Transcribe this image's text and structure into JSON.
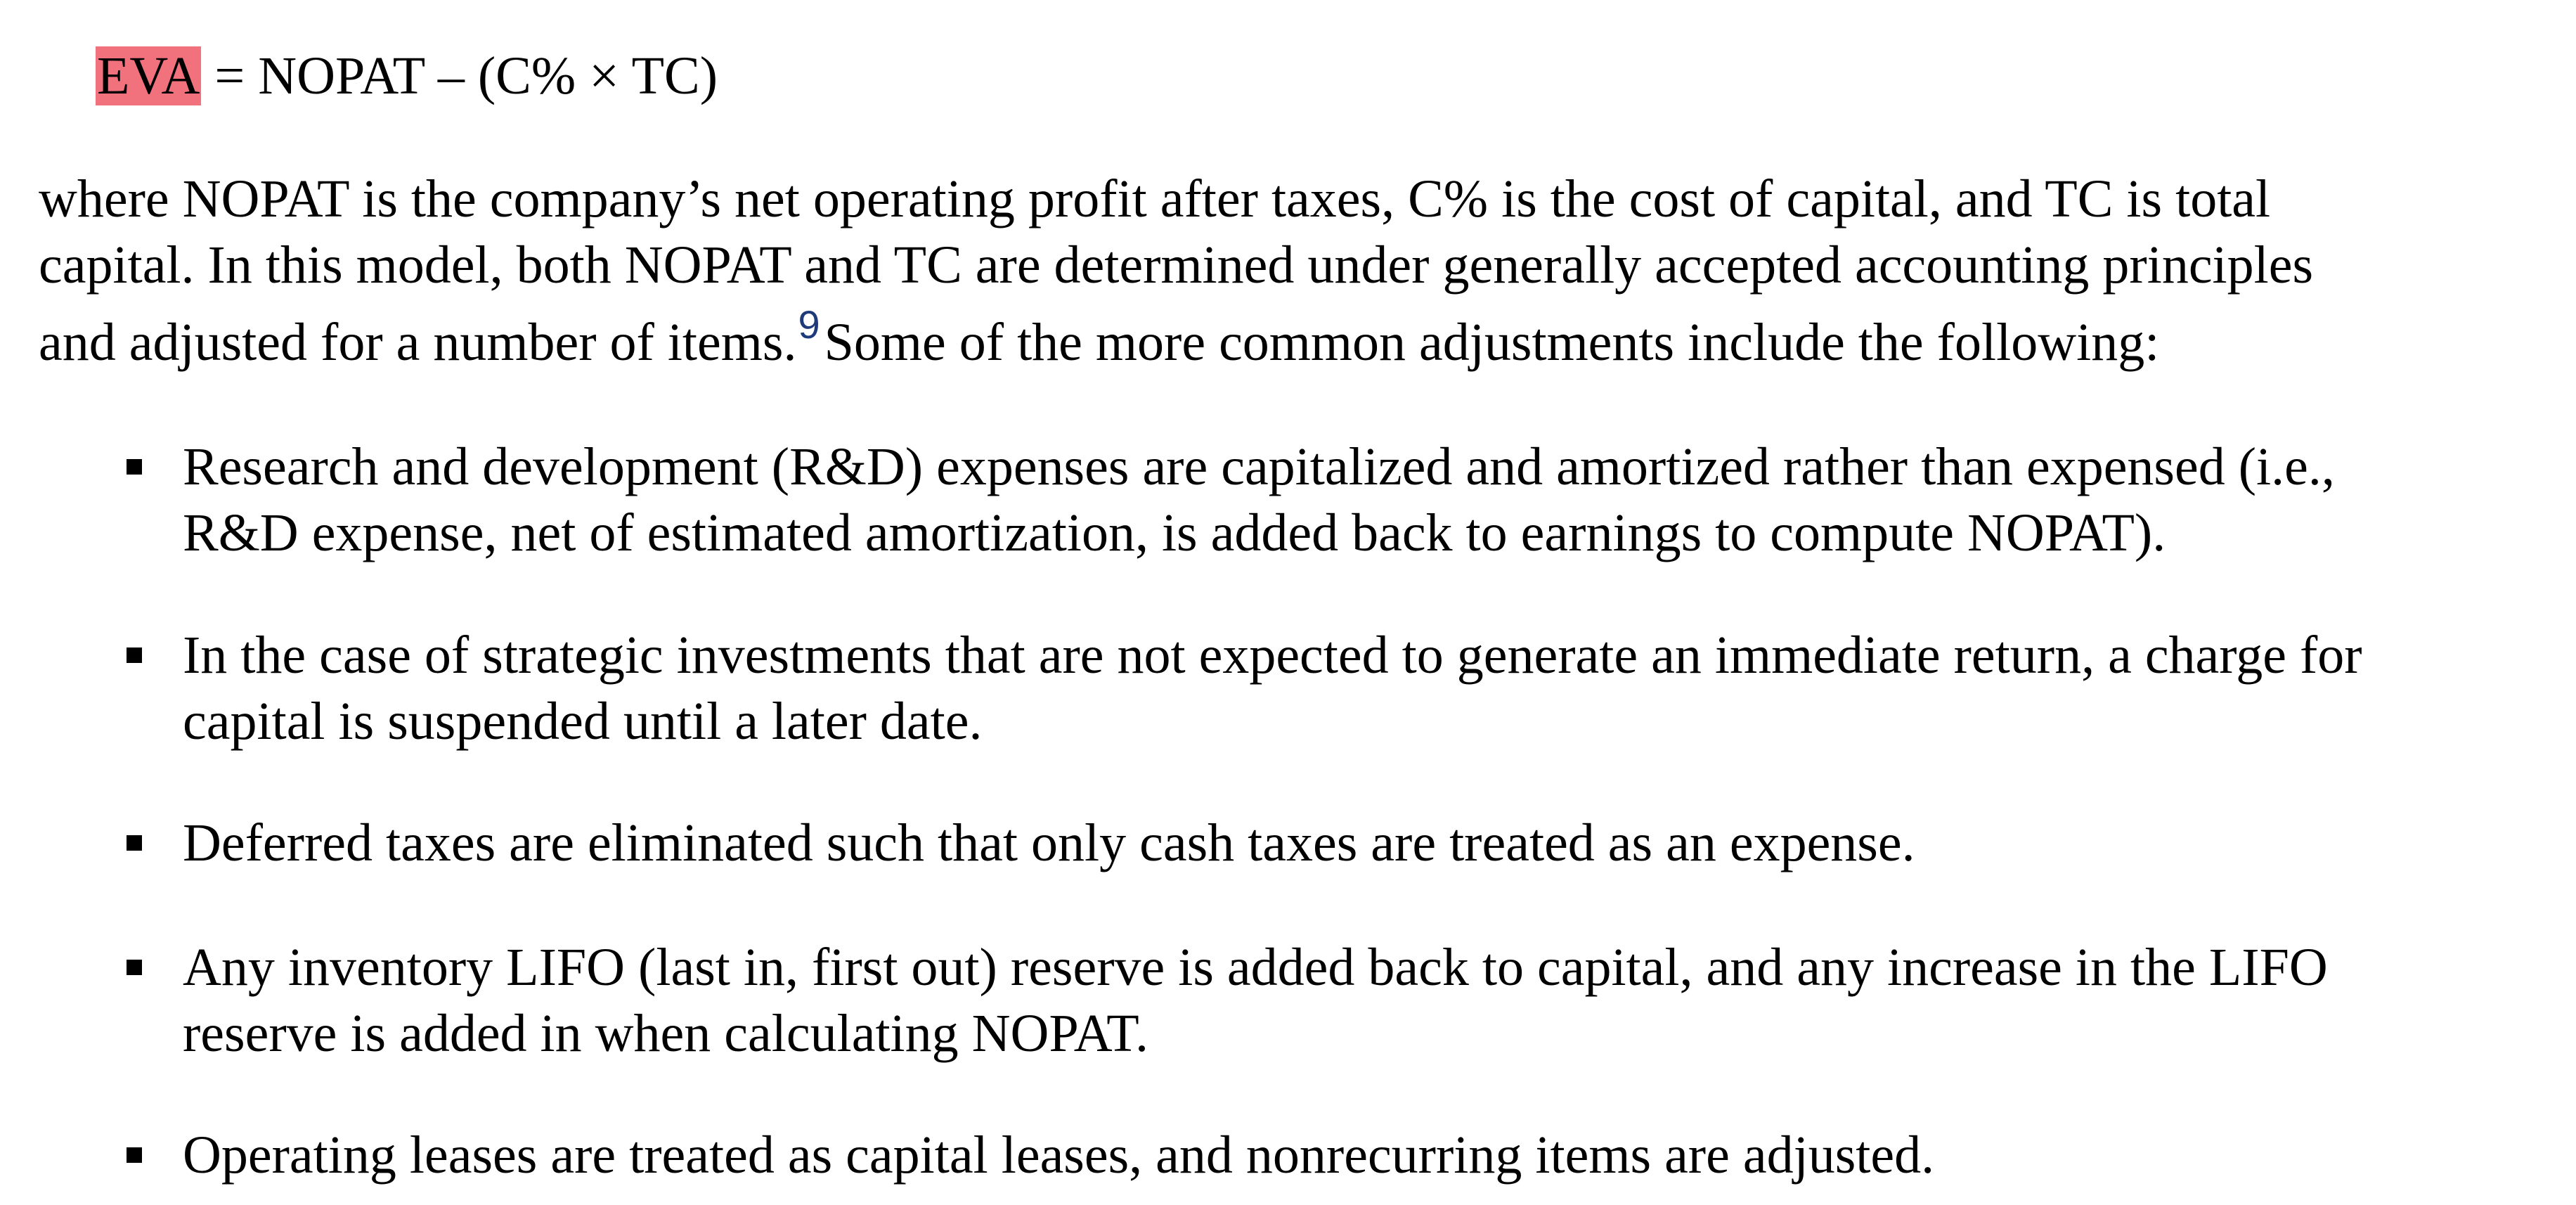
{
  "formula": {
    "highlighted": "EVA",
    "rest": " = NOPAT – (C% × TC)"
  },
  "paragraph": {
    "line1": "where NOPAT is the company’s net operating profit after taxes, C% is the cost of capital, and TC is total",
    "line2": "capital. In this model, both NOPAT and TC are determined under generally accepted accounting principles",
    "line3_a": "and adjusted for a number of items.",
    "footnote": "9",
    "line3_b": "Some of the more common adjustments include the following:"
  },
  "bullets": [
    {
      "lines": [
        "Research and development (R&D) expenses are capitalized and amortized rather than expensed (i.e.,",
        "R&D expense, net of estimated amortization, is added back to earnings to compute NOPAT)."
      ]
    },
    {
      "lines": [
        "In the case of strategic investments that are not expected to generate an immediate return, a charge for",
        "capital is suspended until a later date."
      ]
    },
    {
      "lines": [
        "Deferred taxes are eliminated such that only cash taxes are treated as an expense."
      ]
    },
    {
      "lines": [
        "Any inventory LIFO (last in, first out) reserve is added back to capital, and any increase in the LIFO",
        "reserve is added in when calculating NOPAT."
      ]
    },
    {
      "lines": [
        "Operating leases are treated as capital leases, and nonrecurring items are adjusted."
      ]
    }
  ],
  "colors": {
    "highlight": "#f1727d",
    "footnote": "#1f3a7a"
  }
}
